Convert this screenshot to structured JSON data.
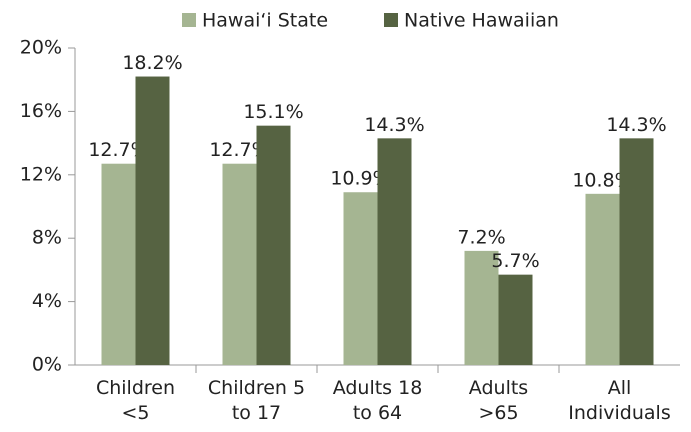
{
  "chart_data": {
    "type": "bar",
    "categories": [
      "Children\n<5",
      "Children 5\nto 17",
      "Adults 18\nto 64",
      "Adults\n>65",
      "All\nIndividuals"
    ],
    "series": [
      {
        "name": "Hawai‘i State",
        "color": "#a5b592",
        "values": [
          12.7,
          12.7,
          10.9,
          7.2,
          10.8
        ],
        "value_labels": [
          "12.7%",
          "12.7%",
          "10.9%",
          "7.2%",
          "10.8%"
        ]
      },
      {
        "name": "Native Hawaiian",
        "color": "#566342",
        "values": [
          18.2,
          15.1,
          14.3,
          5.7,
          14.3
        ],
        "value_labels": [
          "18.2%",
          "15.1%",
          "14.3%",
          "5.7%",
          "14.3%"
        ]
      }
    ],
    "ylim": [
      0,
      20
    ],
    "yticks": [
      {
        "value": 0,
        "label": "0%"
      },
      {
        "value": 4,
        "label": "4%"
      },
      {
        "value": 8,
        "label": "8%"
      },
      {
        "value": 12,
        "label": "12%"
      },
      {
        "value": 16,
        "label": "16%"
      },
      {
        "value": 20,
        "label": "20%"
      }
    ],
    "legend": "top",
    "grid": false
  }
}
